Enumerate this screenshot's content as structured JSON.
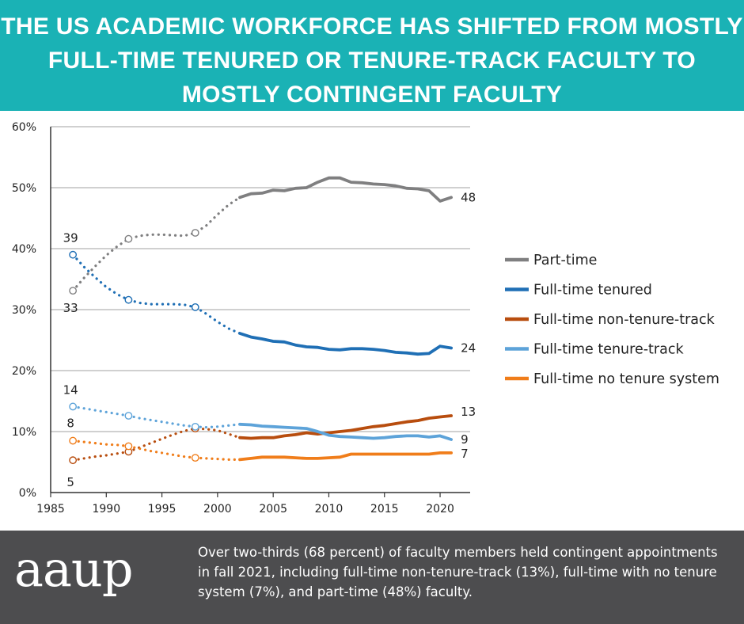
{
  "header": {
    "title": "THE US ACADEMIC WORKFORCE HAS SHIFTED FROM MOSTLY FULL-TIME TENURED OR TENURE-TRACK FACULTY TO MOSTLY CONTINGENT FACULTY"
  },
  "footer": {
    "logo": "aaup",
    "caption": "Over two-thirds (68 percent) of faculty members held contingent appointments in fall 2021, including full-time non-tenure-track (13%), full-time with no tenure system (7%), and part-time (48%) faculty."
  },
  "colors": {
    "banner": "#1ab2b5",
    "footer": "#4d4d4f"
  },
  "chart_data": {
    "type": "line",
    "title": "",
    "xlabel": "",
    "ylabel": "",
    "xlim": [
      1985,
      2023
    ],
    "ylim": [
      0,
      60
    ],
    "xticks": [
      "1985",
      "1990",
      "1995",
      "2000",
      "2005",
      "2010",
      "2015",
      "2020"
    ],
    "yticks": [
      "0%",
      "10%",
      "20%",
      "30%",
      "40%",
      "50%",
      "60%"
    ],
    "grid": "horizontal",
    "legend_position": "right",
    "notes": "Dotted segments with hollow circles mark estimated/interpolated values (1987-2002); solid lines are annual data (2002-2021).",
    "series": [
      {
        "name": "Part-time",
        "color": "#7f7f80",
        "start_label": "33",
        "end_label": "48",
        "dotted": [
          [
            1987,
            33.1
          ],
          [
            1988,
            35.2
          ],
          [
            1989,
            37.1
          ],
          [
            1990,
            38.9
          ],
          [
            1991,
            40.4
          ],
          [
            1992,
            41.6
          ],
          [
            1993,
            42.1
          ],
          [
            1994,
            42.3
          ],
          [
            1995,
            42.3
          ],
          [
            1996,
            42.2
          ],
          [
            1997,
            42.1
          ],
          [
            1998,
            42.6
          ],
          [
            1999,
            43.8
          ],
          [
            2000,
            45.6
          ],
          [
            2001,
            47.2
          ],
          [
            2002,
            48.4
          ]
        ],
        "circles": [
          [
            1987,
            33.1
          ],
          [
            1992,
            41.6
          ],
          [
            1998,
            42.6
          ]
        ],
        "solid": [
          [
            2002,
            48.4
          ],
          [
            2003,
            49.0
          ],
          [
            2004,
            49.1
          ],
          [
            2005,
            49.6
          ],
          [
            2006,
            49.5
          ],
          [
            2007,
            49.9
          ],
          [
            2008,
            50.0
          ],
          [
            2009,
            50.9
          ],
          [
            2010,
            51.6
          ],
          [
            2011,
            51.6
          ],
          [
            2012,
            50.9
          ],
          [
            2013,
            50.8
          ],
          [
            2014,
            50.6
          ],
          [
            2015,
            50.5
          ],
          [
            2016,
            50.3
          ],
          [
            2017,
            49.9
          ],
          [
            2018,
            49.8
          ],
          [
            2019,
            49.5
          ],
          [
            2020,
            47.8
          ],
          [
            2021,
            48.4
          ]
        ]
      },
      {
        "name": "Full-time tenured",
        "color": "#1f6fb5",
        "start_label": "39",
        "end_label": "24",
        "dotted": [
          [
            1987,
            39.0
          ],
          [
            1988,
            37.0
          ],
          [
            1989,
            35.3
          ],
          [
            1990,
            33.7
          ],
          [
            1991,
            32.5
          ],
          [
            1992,
            31.6
          ],
          [
            1993,
            31.1
          ],
          [
            1994,
            30.9
          ],
          [
            1995,
            30.9
          ],
          [
            1996,
            30.9
          ],
          [
            1997,
            30.8
          ],
          [
            1998,
            30.4
          ],
          [
            1999,
            29.3
          ],
          [
            2000,
            28.0
          ],
          [
            2001,
            26.9
          ],
          [
            2002,
            26.1
          ]
        ],
        "circles": [
          [
            1987,
            39.0
          ],
          [
            1992,
            31.6
          ],
          [
            1998,
            30.4
          ]
        ],
        "solid": [
          [
            2002,
            26.1
          ],
          [
            2003,
            25.5
          ],
          [
            2004,
            25.2
          ],
          [
            2005,
            24.8
          ],
          [
            2006,
            24.7
          ],
          [
            2007,
            24.2
          ],
          [
            2008,
            23.9
          ],
          [
            2009,
            23.8
          ],
          [
            2010,
            23.5
          ],
          [
            2011,
            23.4
          ],
          [
            2012,
            23.6
          ],
          [
            2013,
            23.6
          ],
          [
            2014,
            23.5
          ],
          [
            2015,
            23.3
          ],
          [
            2016,
            23.0
          ],
          [
            2017,
            22.9
          ],
          [
            2018,
            22.7
          ],
          [
            2019,
            22.8
          ],
          [
            2020,
            24.0
          ],
          [
            2021,
            23.7
          ]
        ]
      },
      {
        "name": "Full-time non-tenure-track",
        "color": "#b84d0e",
        "start_label": "5",
        "end_label": "13",
        "dotted": [
          [
            1987,
            5.3
          ],
          [
            1988,
            5.6
          ],
          [
            1989,
            5.9
          ],
          [
            1990,
            6.1
          ],
          [
            1991,
            6.4
          ],
          [
            1992,
            6.7
          ],
          [
            1993,
            7.4
          ],
          [
            1994,
            8.1
          ],
          [
            1995,
            8.8
          ],
          [
            1996,
            9.5
          ],
          [
            1997,
            10.1
          ],
          [
            1998,
            10.5
          ],
          [
            1999,
            10.4
          ],
          [
            2000,
            10.2
          ],
          [
            2001,
            9.6
          ],
          [
            2002,
            9.0
          ]
        ],
        "circles": [
          [
            1987,
            5.3
          ],
          [
            1992,
            6.7
          ],
          [
            1998,
            10.5
          ]
        ],
        "solid": [
          [
            2002,
            9.0
          ],
          [
            2003,
            8.9
          ],
          [
            2004,
            9.0
          ],
          [
            2005,
            9.0
          ],
          [
            2006,
            9.3
          ],
          [
            2007,
            9.5
          ],
          [
            2008,
            9.8
          ],
          [
            2009,
            9.6
          ],
          [
            2010,
            9.8
          ],
          [
            2011,
            10.0
          ],
          [
            2012,
            10.2
          ],
          [
            2013,
            10.5
          ],
          [
            2014,
            10.8
          ],
          [
            2015,
            11.0
          ],
          [
            2016,
            11.3
          ],
          [
            2017,
            11.6
          ],
          [
            2018,
            11.8
          ],
          [
            2019,
            12.2
          ],
          [
            2020,
            12.4
          ],
          [
            2021,
            12.6
          ]
        ]
      },
      {
        "name": "Full-time tenure-track",
        "color": "#5da3d9",
        "start_label": "14",
        "end_label": "9",
        "dotted": [
          [
            1987,
            14.1
          ],
          [
            1988,
            13.8
          ],
          [
            1989,
            13.5
          ],
          [
            1990,
            13.2
          ],
          [
            1991,
            12.9
          ],
          [
            1992,
            12.6
          ],
          [
            1993,
            12.2
          ],
          [
            1994,
            11.9
          ],
          [
            1995,
            11.6
          ],
          [
            1996,
            11.3
          ],
          [
            1997,
            11.0
          ],
          [
            1998,
            10.8
          ],
          [
            1999,
            10.7
          ],
          [
            2000,
            10.8
          ],
          [
            2001,
            11.0
          ],
          [
            2002,
            11.2
          ]
        ],
        "circles": [
          [
            1987,
            14.1
          ],
          [
            1992,
            12.6
          ],
          [
            1998,
            10.8
          ]
        ],
        "solid": [
          [
            2002,
            11.2
          ],
          [
            2003,
            11.1
          ],
          [
            2004,
            10.9
          ],
          [
            2005,
            10.8
          ],
          [
            2006,
            10.7
          ],
          [
            2007,
            10.6
          ],
          [
            2008,
            10.5
          ],
          [
            2009,
            10.0
          ],
          [
            2010,
            9.4
          ],
          [
            2011,
            9.2
          ],
          [
            2012,
            9.1
          ],
          [
            2013,
            9.0
          ],
          [
            2014,
            8.9
          ],
          [
            2015,
            9.0
          ],
          [
            2016,
            9.2
          ],
          [
            2017,
            9.3
          ],
          [
            2018,
            9.3
          ],
          [
            2019,
            9.1
          ],
          [
            2020,
            9.3
          ],
          [
            2021,
            8.7
          ]
        ]
      },
      {
        "name": "Full-time no tenure system",
        "color": "#f07d1a",
        "start_label": "8",
        "end_label": "7",
        "dotted": [
          [
            1987,
            8.5
          ],
          [
            1988,
            8.3
          ],
          [
            1989,
            8.1
          ],
          [
            1990,
            7.9
          ],
          [
            1991,
            7.8
          ],
          [
            1992,
            7.6
          ],
          [
            1993,
            7.2
          ],
          [
            1994,
            6.8
          ],
          [
            1995,
            6.5
          ],
          [
            1996,
            6.2
          ],
          [
            1997,
            5.9
          ],
          [
            1998,
            5.7
          ],
          [
            1999,
            5.6
          ],
          [
            2000,
            5.5
          ],
          [
            2001,
            5.4
          ],
          [
            2002,
            5.4
          ]
        ],
        "circles": [
          [
            1987,
            8.5
          ],
          [
            1992,
            7.6
          ],
          [
            1998,
            5.7
          ]
        ],
        "solid": [
          [
            2002,
            5.4
          ],
          [
            2003,
            5.6
          ],
          [
            2004,
            5.8
          ],
          [
            2005,
            5.8
          ],
          [
            2006,
            5.8
          ],
          [
            2007,
            5.7
          ],
          [
            2008,
            5.6
          ],
          [
            2009,
            5.6
          ],
          [
            2010,
            5.7
          ],
          [
            2011,
            5.8
          ],
          [
            2012,
            6.3
          ],
          [
            2013,
            6.3
          ],
          [
            2014,
            6.3
          ],
          [
            2015,
            6.3
          ],
          [
            2016,
            6.3
          ],
          [
            2017,
            6.3
          ],
          [
            2018,
            6.3
          ],
          [
            2019,
            6.3
          ],
          [
            2020,
            6.5
          ],
          [
            2021,
            6.5
          ]
        ]
      }
    ]
  }
}
